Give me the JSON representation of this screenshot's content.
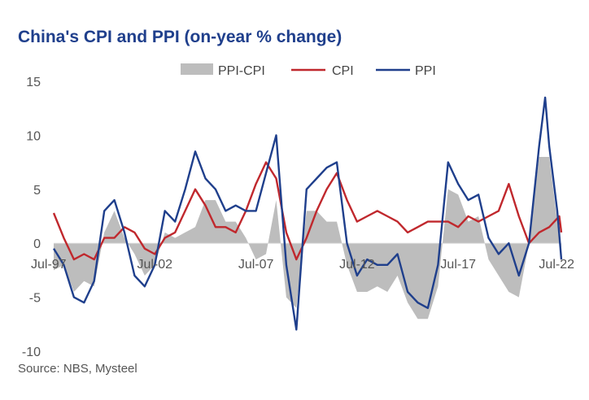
{
  "chart_data": {
    "type": "line",
    "title": "China's CPI and PPI (on-year % change)",
    "source": "Source: NBS, Mysteel",
    "xlabel": "",
    "ylabel": "",
    "ylim": [
      -10,
      15
    ],
    "yticks": [
      "15",
      "10",
      "5",
      "0",
      "-5",
      "-10"
    ],
    "xticks": [
      {
        "label": "Jul-97",
        "date": 1997.5
      },
      {
        "label": "Jul-02",
        "date": 2002.5
      },
      {
        "label": "Jul-07",
        "date": 2007.5
      },
      {
        "label": "Jul-12",
        "date": 2012.5
      },
      {
        "label": "Jul-17",
        "date": 2017.5
      },
      {
        "label": "Jul-22",
        "date": 2022.5
      }
    ],
    "xlim": [
      1997.5,
      2022.6
    ],
    "legend_position": "top",
    "series": [
      {
        "name": "PPI-CPI",
        "style": "area",
        "color": "#bdbdbd",
        "points": [
          [
            1997.5,
            -2.5
          ],
          [
            1998.0,
            -2.0
          ],
          [
            1998.5,
            -4.5
          ],
          [
            1999.0,
            -3.5
          ],
          [
            1999.5,
            -4.0
          ],
          [
            2000.0,
            1.0
          ],
          [
            2000.5,
            3.0
          ],
          [
            2001.0,
            0.5
          ],
          [
            2001.5,
            -1.0
          ],
          [
            2002.0,
            -3.0
          ],
          [
            2002.5,
            -2.0
          ],
          [
            2003.0,
            1.0
          ],
          [
            2003.5,
            0.5
          ],
          [
            2004.0,
            1.0
          ],
          [
            2004.5,
            1.5
          ],
          [
            2005.0,
            4.0
          ],
          [
            2005.5,
            4.0
          ],
          [
            2006.0,
            2.0
          ],
          [
            2006.5,
            2.0
          ],
          [
            2007.0,
            0.5
          ],
          [
            2007.5,
            -1.5
          ],
          [
            2008.0,
            -1.0
          ],
          [
            2008.5,
            4.0
          ],
          [
            2009.0,
            -5.0
          ],
          [
            2009.5,
            -6.0
          ],
          [
            2010.0,
            3.0
          ],
          [
            2010.5,
            3.0
          ],
          [
            2011.0,
            2.0
          ],
          [
            2011.5,
            2.0
          ],
          [
            2012.0,
            -2.0
          ],
          [
            2012.5,
            -4.5
          ],
          [
            2013.0,
            -4.5
          ],
          [
            2013.5,
            -4.0
          ],
          [
            2014.0,
            -4.5
          ],
          [
            2014.5,
            -3.0
          ],
          [
            2015.0,
            -5.5
          ],
          [
            2015.5,
            -7.0
          ],
          [
            2016.0,
            -7.0
          ],
          [
            2016.5,
            -4.0
          ],
          [
            2017.0,
            5.0
          ],
          [
            2017.5,
            4.5
          ],
          [
            2018.0,
            2.0
          ],
          [
            2018.5,
            2.5
          ],
          [
            2019.0,
            -1.5
          ],
          [
            2019.5,
            -3.0
          ],
          [
            2020.0,
            -4.5
          ],
          [
            2020.5,
            -5.0
          ],
          [
            2021.0,
            0.0
          ],
          [
            2021.5,
            8.0
          ],
          [
            2022.0,
            8.0
          ],
          [
            2022.4,
            2.0
          ],
          [
            2022.6,
            -2.0
          ]
        ]
      },
      {
        "name": "CPI",
        "style": "line",
        "color": "#c0282d",
        "points": [
          [
            1997.5,
            2.8
          ],
          [
            1998.0,
            0.5
          ],
          [
            1998.5,
            -1.5
          ],
          [
            1999.0,
            -1.0
          ],
          [
            1999.5,
            -1.5
          ],
          [
            2000.0,
            0.5
          ],
          [
            2000.5,
            0.5
          ],
          [
            2001.0,
            1.5
          ],
          [
            2001.5,
            1.0
          ],
          [
            2002.0,
            -0.5
          ],
          [
            2002.5,
            -1.0
          ],
          [
            2003.0,
            0.5
          ],
          [
            2003.5,
            1.0
          ],
          [
            2004.0,
            3.0
          ],
          [
            2004.5,
            5.0
          ],
          [
            2005.0,
            3.5
          ],
          [
            2005.5,
            1.5
          ],
          [
            2006.0,
            1.5
          ],
          [
            2006.5,
            1.0
          ],
          [
            2007.0,
            3.0
          ],
          [
            2007.5,
            5.5
          ],
          [
            2008.0,
            7.5
          ],
          [
            2008.5,
            6.0
          ],
          [
            2009.0,
            1.0
          ],
          [
            2009.5,
            -1.5
          ],
          [
            2010.0,
            0.5
          ],
          [
            2010.5,
            3.0
          ],
          [
            2011.0,
            5.0
          ],
          [
            2011.5,
            6.5
          ],
          [
            2012.0,
            4.0
          ],
          [
            2012.5,
            2.0
          ],
          [
            2013.0,
            2.5
          ],
          [
            2013.5,
            3.0
          ],
          [
            2014.0,
            2.5
          ],
          [
            2014.5,
            2.0
          ],
          [
            2015.0,
            1.0
          ],
          [
            2015.5,
            1.5
          ],
          [
            2016.0,
            2.0
          ],
          [
            2016.5,
            2.0
          ],
          [
            2017.0,
            2.0
          ],
          [
            2017.5,
            1.5
          ],
          [
            2018.0,
            2.5
          ],
          [
            2018.5,
            2.0
          ],
          [
            2019.0,
            2.5
          ],
          [
            2019.5,
            3.0
          ],
          [
            2020.0,
            5.5
          ],
          [
            2020.5,
            2.5
          ],
          [
            2021.0,
            0.0
          ],
          [
            2021.5,
            1.0
          ],
          [
            2022.0,
            1.5
          ],
          [
            2022.5,
            2.5
          ],
          [
            2022.6,
            1.0
          ]
        ]
      },
      {
        "name": "PPI",
        "style": "line",
        "color": "#1f3f8c",
        "points": [
          [
            1997.5,
            -0.5
          ],
          [
            1998.0,
            -2.0
          ],
          [
            1998.5,
            -5.0
          ],
          [
            1999.0,
            -5.5
          ],
          [
            1999.5,
            -3.5
          ],
          [
            2000.0,
            3.0
          ],
          [
            2000.5,
            4.0
          ],
          [
            2001.0,
            1.0
          ],
          [
            2001.5,
            -3.0
          ],
          [
            2002.0,
            -4.0
          ],
          [
            2002.5,
            -2.0
          ],
          [
            2003.0,
            3.0
          ],
          [
            2003.5,
            2.0
          ],
          [
            2004.0,
            5.0
          ],
          [
            2004.5,
            8.5
          ],
          [
            2005.0,
            6.0
          ],
          [
            2005.5,
            5.0
          ],
          [
            2006.0,
            3.0
          ],
          [
            2006.5,
            3.5
          ],
          [
            2007.0,
            3.0
          ],
          [
            2007.5,
            3.0
          ],
          [
            2008.0,
            6.5
          ],
          [
            2008.5,
            10.0
          ],
          [
            2009.0,
            -2.0
          ],
          [
            2009.5,
            -8.0
          ],
          [
            2010.0,
            5.0
          ],
          [
            2010.5,
            6.0
          ],
          [
            2011.0,
            7.0
          ],
          [
            2011.5,
            7.5
          ],
          [
            2012.0,
            0.0
          ],
          [
            2012.5,
            -3.0
          ],
          [
            2013.0,
            -1.5
          ],
          [
            2013.5,
            -2.0
          ],
          [
            2014.0,
            -2.0
          ],
          [
            2014.5,
            -1.0
          ],
          [
            2015.0,
            -4.5
          ],
          [
            2015.5,
            -5.5
          ],
          [
            2016.0,
            -6.0
          ],
          [
            2016.5,
            -2.0
          ],
          [
            2017.0,
            7.5
          ],
          [
            2017.5,
            5.5
          ],
          [
            2018.0,
            4.0
          ],
          [
            2018.5,
            4.5
          ],
          [
            2019.0,
            0.5
          ],
          [
            2019.5,
            -1.0
          ],
          [
            2020.0,
            0.0
          ],
          [
            2020.5,
            -3.0
          ],
          [
            2021.0,
            0.0
          ],
          [
            2021.5,
            9.0
          ],
          [
            2021.8,
            13.5
          ],
          [
            2022.0,
            9.0
          ],
          [
            2022.4,
            3.0
          ],
          [
            2022.6,
            -1.5
          ]
        ]
      }
    ]
  }
}
